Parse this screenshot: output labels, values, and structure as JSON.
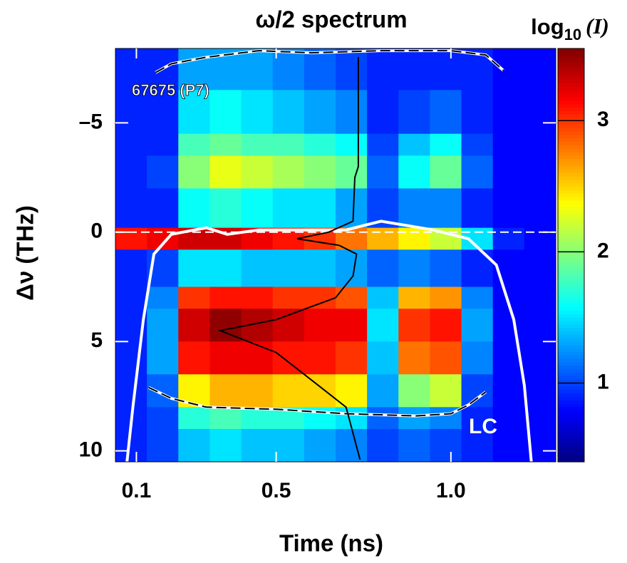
{
  "chart_data": {
    "type": "heatmap",
    "title": "ω/2 spectrum",
    "xlabel": "Time (ns)",
    "ylabel": "Δν (THz)",
    "colorbar_label": [
      "log",
      "10",
      "(I)"
    ],
    "annotations": [
      "67675 (P7)",
      "LC"
    ],
    "xlim": [
      0.04,
      1.3
    ],
    "ylim": [
      -8.4,
      10.5
    ],
    "y_inverted": true,
    "xticks": [
      0.1,
      0.5,
      {
        "value": 1,
        "label": "1.0"
      }
    ],
    "yticks": [
      {
        "value": -5,
        "label": "–5"
      },
      0,
      5,
      10
    ],
    "clim": [
      0.4,
      3.55
    ],
    "cticks": [
      1,
      2,
      3
    ],
    "colormap": "jet",
    "x_edges": [
      0.04,
      0.13,
      0.22,
      0.31,
      0.4,
      0.49,
      0.58,
      0.67,
      0.76,
      0.85,
      0.94,
      1.03,
      1.12,
      1.21,
      1.3
    ],
    "y_edges": [
      -8.4,
      -6.5,
      -4.5,
      -3.5,
      -2,
      -0.2,
      0.8,
      2.5,
      3.5,
      5,
      6.5,
      8,
      9,
      10.5
    ],
    "z": [
      [
        0.9,
        0.9,
        1.3,
        1.3,
        1.3,
        1.2,
        1.1,
        1.0,
        0.9,
        0.9,
        0.9,
        0.9,
        0.8,
        0.8
      ],
      [
        0.9,
        0.9,
        1.5,
        1.6,
        1.5,
        1.4,
        1.3,
        1.2,
        0.9,
        1.0,
        1.1,
        0.9,
        0.8,
        0.8
      ],
      [
        0.9,
        0.9,
        1.8,
        1.9,
        1.8,
        1.8,
        1.7,
        1.6,
        1.0,
        1.4,
        1.6,
        1.0,
        0.8,
        0.8
      ],
      [
        0.9,
        1.0,
        2.0,
        2.3,
        2.2,
        2.1,
        2.0,
        1.9,
        1.1,
        1.6,
        1.9,
        1.1,
        0.8,
        0.8
      ],
      [
        0.9,
        0.9,
        1.6,
        1.7,
        1.6,
        1.5,
        1.5,
        1.3,
        1.0,
        1.2,
        1.2,
        0.9,
        0.8,
        0.8
      ],
      [
        3.1,
        3.2,
        3.3,
        3.3,
        3.2,
        3.1,
        3.0,
        2.8,
        2.6,
        2.4,
        2.2,
        1.5,
        0.9,
        0.8
      ],
      [
        0.9,
        1.0,
        1.5,
        1.5,
        1.4,
        1.4,
        1.4,
        1.3,
        1.1,
        1.2,
        1.1,
        0.9,
        0.8,
        0.8
      ],
      [
        0.9,
        1.2,
        3.0,
        3.1,
        3.1,
        3.0,
        3.0,
        2.9,
        1.4,
        2.6,
        2.7,
        1.2,
        0.8,
        0.8
      ],
      [
        0.9,
        1.3,
        3.3,
        3.5,
        3.4,
        3.3,
        3.2,
        3.2,
        1.5,
        3.0,
        3.1,
        1.3,
        0.8,
        0.8
      ],
      [
        0.9,
        1.3,
        3.1,
        3.2,
        3.2,
        3.1,
        3.1,
        3.0,
        1.4,
        2.8,
        2.9,
        1.2,
        0.8,
        0.8
      ],
      [
        0.9,
        1.1,
        2.4,
        2.6,
        2.6,
        2.5,
        2.5,
        2.4,
        1.3,
        2.0,
        2.2,
        1.0,
        0.8,
        0.8
      ],
      [
        0.9,
        1.0,
        1.7,
        1.8,
        1.7,
        1.7,
        1.6,
        1.5,
        1.1,
        1.3,
        1.2,
        0.9,
        0.8,
        0.8
      ],
      [
        0.9,
        1.0,
        1.4,
        1.5,
        1.4,
        1.4,
        1.3,
        1.2,
        1.0,
        1.1,
        1.0,
        0.9,
        0.8,
        0.8
      ]
    ],
    "reference_line": 0,
    "lineout": {
      "color": "#000000",
      "x": [
        0.735,
        0.735,
        0.725,
        0.72,
        0.65,
        0.56,
        0.68,
        0.73,
        0.72,
        0.67,
        0.5,
        0.34,
        0.5,
        0.62,
        0.7,
        0.74
      ],
      "y": [
        -8,
        -3,
        -2.5,
        -0.5,
        0,
        0.3,
        0.6,
        1,
        2,
        3,
        4,
        4.5,
        5.5,
        7,
        8,
        10.4
      ]
    },
    "lc_curve": {
      "color": "#ffffff",
      "x": [
        0.073,
        0.09,
        0.12,
        0.15,
        0.2,
        0.3,
        0.36,
        0.45,
        0.7,
        0.8,
        0.95,
        1.05,
        1.13,
        1.18,
        1.21,
        1.23
      ],
      "y": [
        10.5,
        8,
        4,
        1,
        0.1,
        -0.2,
        0.1,
        -0.1,
        -0.1,
        -0.5,
        -0.1,
        0.3,
        1.5,
        4,
        7,
        10.5
      ]
    },
    "upper_boundary": {
      "x": [
        0.155,
        0.2,
        0.3,
        0.45,
        0.6,
        0.8,
        1.0,
        1.1,
        1.15
      ],
      "y": [
        -7.3,
        -7.7,
        -8.0,
        -8.3,
        -8.2,
        -8.3,
        -8.3,
        -8.1,
        -7.4
      ]
    },
    "lower_boundary": {
      "x": [
        0.135,
        0.2,
        0.3,
        0.5,
        0.7,
        0.9,
        1.0,
        1.05,
        1.1
      ],
      "y": [
        7.1,
        7.6,
        8.0,
        8.1,
        8.3,
        8.4,
        8.3,
        7.9,
        7.3
      ]
    }
  }
}
